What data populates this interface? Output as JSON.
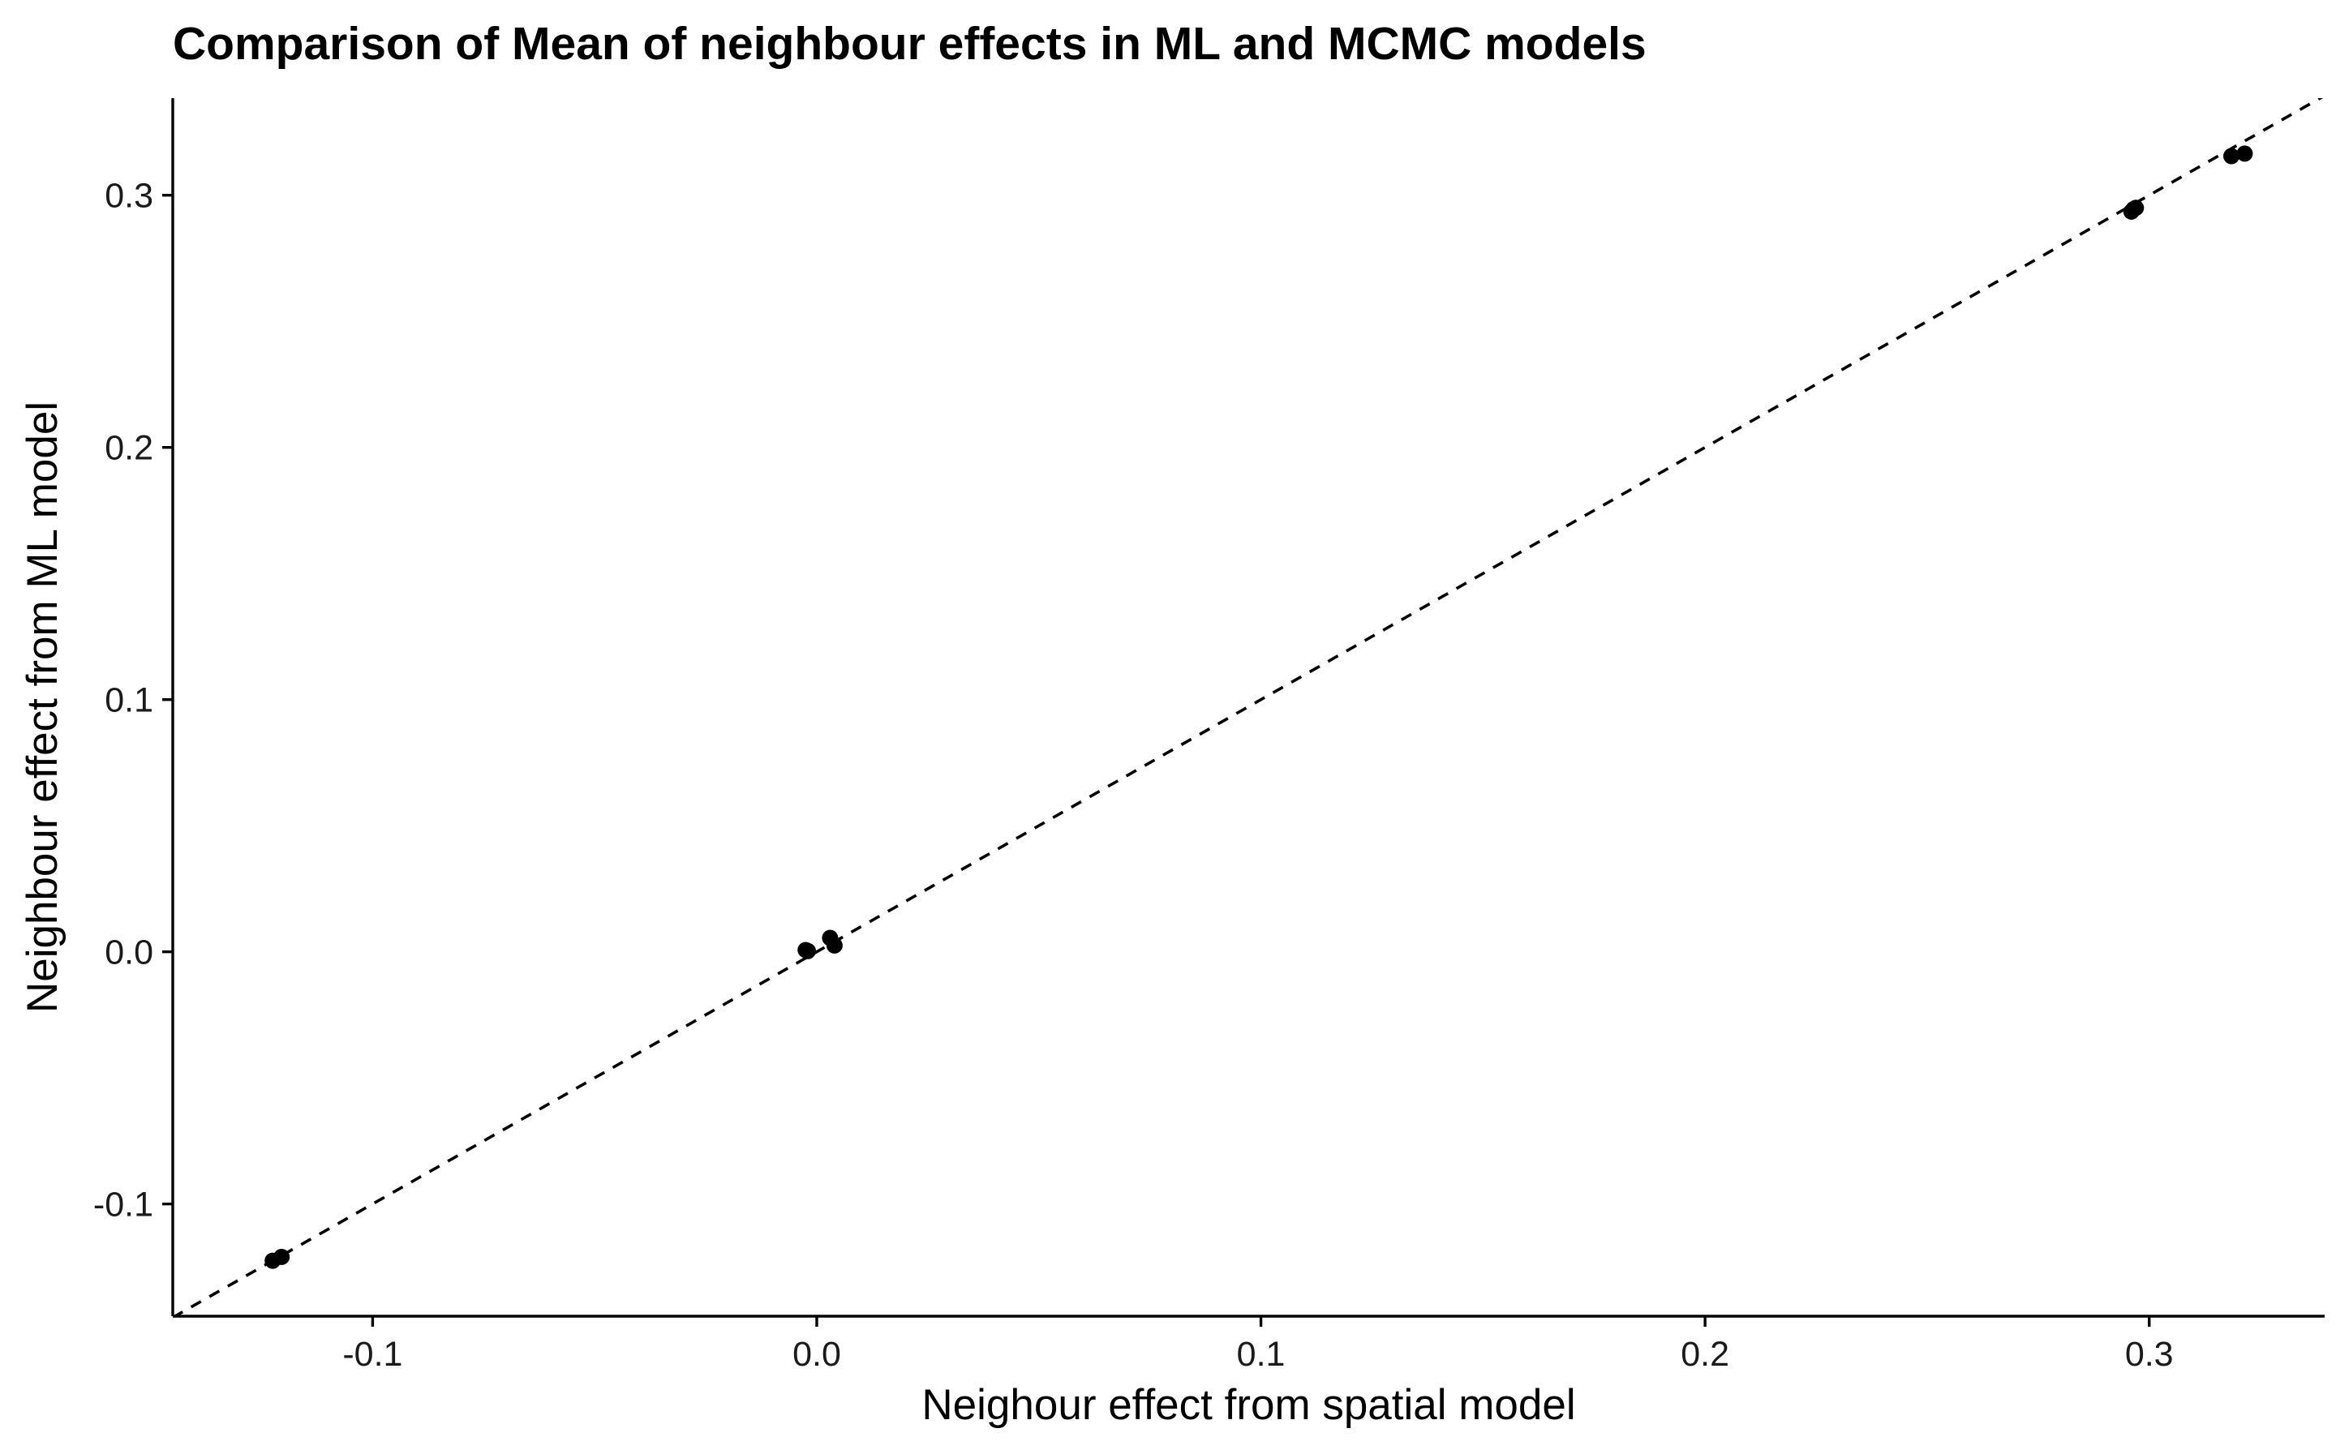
{
  "chart_data": {
    "type": "scatter",
    "title": "Comparison of Mean of neighbour effects in ML and MCMC models",
    "xlabel": "Neighour effect from spatial model",
    "ylabel": "Neighbour effect from ML model",
    "xlim": [
      -0.145,
      0.3395
    ],
    "ylim": [
      -0.1445,
      0.3385
    ],
    "x_ticks": [
      -0.1,
      0.0,
      0.1,
      0.2,
      0.3
    ],
    "x_tick_labels": [
      "-0.1",
      "0.0",
      "0.1",
      "0.2",
      "0.3"
    ],
    "y_ticks": [
      -0.1,
      0.0,
      0.1,
      0.2,
      0.3
    ],
    "y_tick_labels": [
      "-0.1",
      "0.0",
      "0.1",
      "0.2",
      "0.3"
    ],
    "grid": false,
    "legend": "none",
    "reference_line": {
      "intercept": 0,
      "slope": 1,
      "style": "dashed"
    },
    "points": [
      {
        "x": -0.1225,
        "y": -0.1225
      },
      {
        "x": -0.1205,
        "y": -0.121
      },
      {
        "x": -0.0025,
        "y": 0.0007
      },
      {
        "x": -0.002,
        "y": 0.0003
      },
      {
        "x": 0.003,
        "y": 0.0055
      },
      {
        "x": 0.004,
        "y": 0.0025
      },
      {
        "x": 0.296,
        "y": 0.2935
      },
      {
        "x": 0.2965,
        "y": 0.2945
      },
      {
        "x": 0.297,
        "y": 0.295
      },
      {
        "x": 0.3185,
        "y": 0.3155
      },
      {
        "x": 0.3215,
        "y": 0.3165
      }
    ],
    "colors": {
      "points": "#000000",
      "axes": "#000000",
      "background": "#ffffff"
    }
  }
}
